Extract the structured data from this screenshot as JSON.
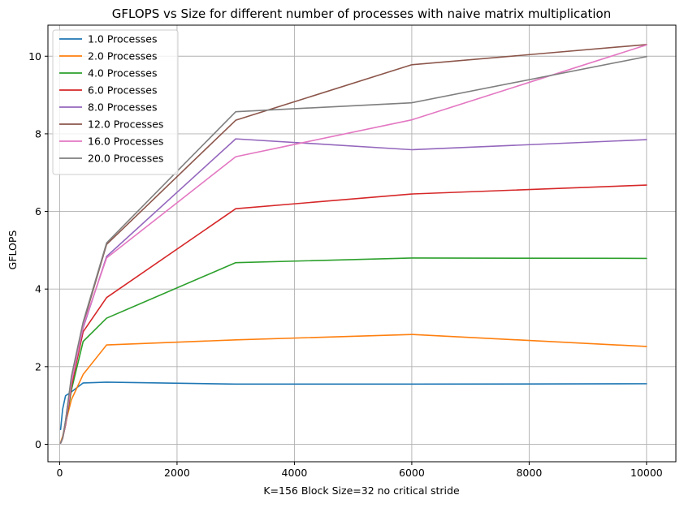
{
  "chart_data": {
    "type": "line",
    "title": "GFLOPS vs Size for different number of processes with naive matrix multiplication",
    "xlabel": "K=156 Block Size=32 no critical stride",
    "ylabel": "GFLOPS",
    "xlim": [
      -200,
      10500
    ],
    "ylim": [
      -0.45,
      10.8
    ],
    "xticks": [
      0,
      2000,
      4000,
      6000,
      8000,
      10000
    ],
    "yticks": [
      0,
      2,
      4,
      6,
      8,
      10
    ],
    "grid": true,
    "legend_position": "top-left",
    "x": [
      16,
      50,
      100,
      200,
      400,
      800,
      3000,
      6000,
      10000
    ],
    "series": [
      {
        "name": "1.0 Processes",
        "color": "#1f77b4",
        "values": [
          0.38,
          0.9,
          1.25,
          1.35,
          1.58,
          1.6,
          1.55,
          1.55,
          1.56
        ]
      },
      {
        "name": "2.0 Processes",
        "color": "#ff7f0e",
        "values": [
          0.05,
          0.2,
          0.55,
          1.15,
          1.8,
          2.56,
          2.69,
          2.83,
          2.52
        ]
      },
      {
        "name": "4.0 Processes",
        "color": "#2ca02c",
        "values": [
          0.03,
          0.15,
          0.5,
          1.4,
          2.65,
          3.25,
          4.68,
          4.8,
          4.79
        ]
      },
      {
        "name": "6.0 Processes",
        "color": "#d62728",
        "values": [
          0.03,
          0.15,
          0.5,
          1.5,
          2.9,
          3.78,
          6.07,
          6.45,
          6.68
        ]
      },
      {
        "name": "8.0 Processes",
        "color": "#9467bd",
        "values": [
          0.03,
          0.15,
          0.55,
          1.6,
          3.0,
          4.84,
          7.87,
          7.59,
          7.85
        ]
      },
      {
        "name": "12.0 Processes",
        "color": "#8c564b",
        "values": [
          0.03,
          0.15,
          0.6,
          1.7,
          3.1,
          5.15,
          8.35,
          9.78,
          10.3
        ]
      },
      {
        "name": "16.0 Processes",
        "color": "#e377c2",
        "values": [
          0.03,
          0.15,
          0.55,
          1.6,
          3.05,
          4.8,
          7.41,
          8.36,
          10.29
        ]
      },
      {
        "name": "20.0 Processes",
        "color": "#7f7f7f",
        "values": [
          0.03,
          0.15,
          0.6,
          1.75,
          3.15,
          5.19,
          8.57,
          8.8,
          9.99
        ]
      }
    ]
  }
}
